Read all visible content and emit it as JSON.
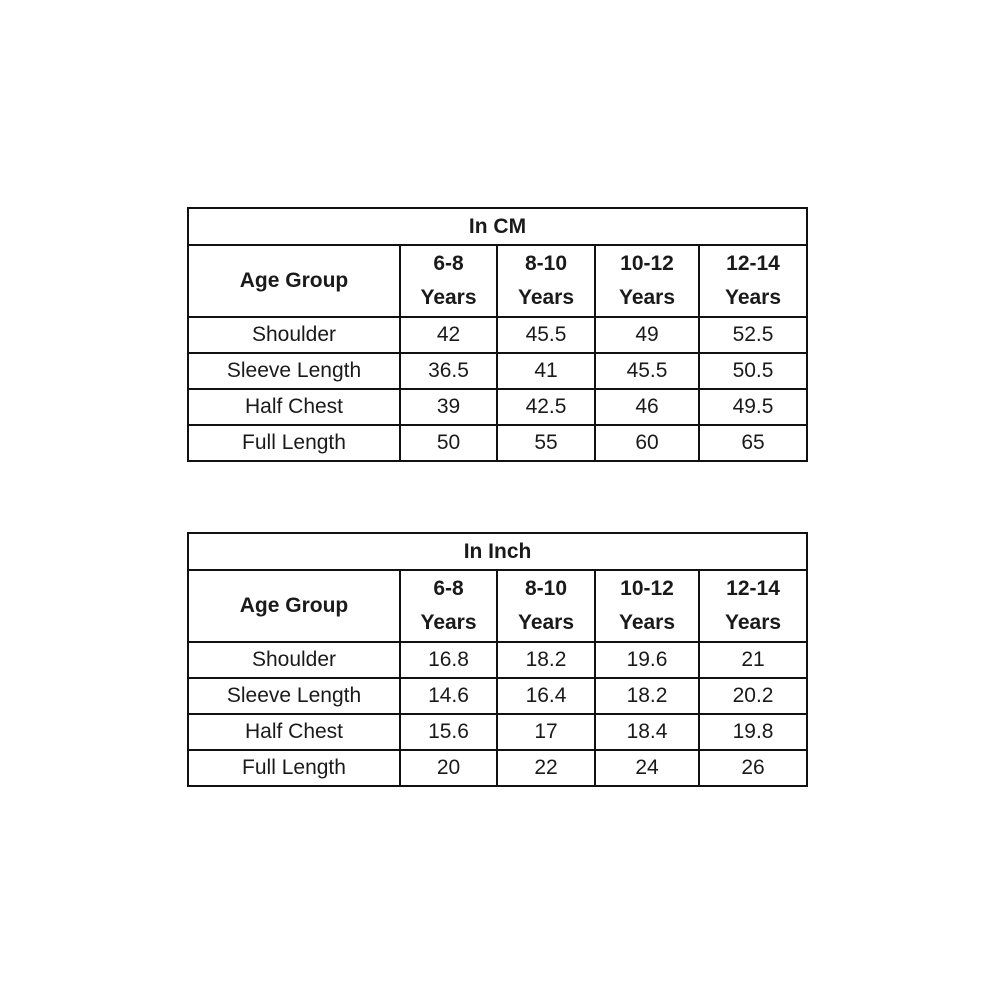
{
  "tables": [
    {
      "title": "In CM",
      "row_header_label": "Age Group",
      "columns": [
        {
          "range": "6-8",
          "unit": "Years"
        },
        {
          "range": "8-10",
          "unit": "Years"
        },
        {
          "range": "10-12",
          "unit": "Years"
        },
        {
          "range": "12-14",
          "unit": "Years"
        }
      ],
      "rows": [
        {
          "label": "Shoulder",
          "values": [
            "42",
            "45.5",
            "49",
            "52.5"
          ]
        },
        {
          "label": "Sleeve Length",
          "values": [
            "36.5",
            "41",
            "45.5",
            "50.5"
          ]
        },
        {
          "label": "Half Chest",
          "values": [
            "39",
            "42.5",
            "46",
            "49.5"
          ]
        },
        {
          "label": "Full Length",
          "values": [
            "50",
            "55",
            "60",
            "65"
          ]
        }
      ]
    },
    {
      "title": "In Inch",
      "row_header_label": "Age Group",
      "columns": [
        {
          "range": "6-8",
          "unit": "Years"
        },
        {
          "range": "8-10",
          "unit": "Years"
        },
        {
          "range": "10-12",
          "unit": "Years"
        },
        {
          "range": "12-14",
          "unit": "Years"
        }
      ],
      "rows": [
        {
          "label": "Shoulder",
          "values": [
            "16.8",
            "18.2",
            "19.6",
            "21"
          ]
        },
        {
          "label": "Sleeve Length",
          "values": [
            "14.6",
            "16.4",
            "18.2",
            "20.2"
          ]
        },
        {
          "label": "Half Chest",
          "values": [
            "15.6",
            "17",
            "18.4",
            "19.8"
          ]
        },
        {
          "label": "Full Length",
          "values": [
            "20",
            "22",
            "24",
            "26"
          ]
        }
      ]
    }
  ]
}
